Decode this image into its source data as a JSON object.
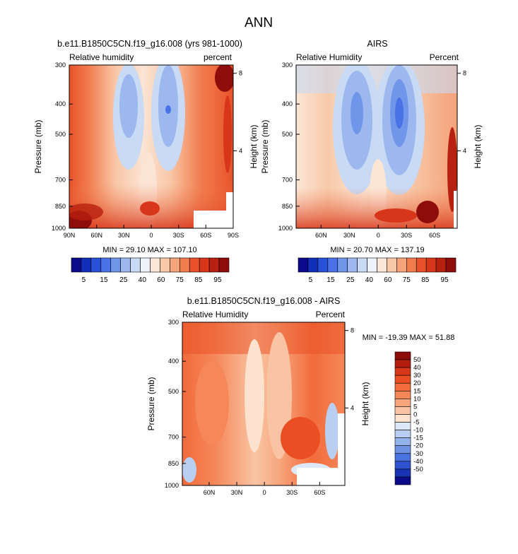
{
  "chart_data": {
    "type": "heatmap",
    "title": "ANN",
    "panels": [
      {
        "id": "model",
        "title": "b.e11.B1850C5CN.f19_g16.008 (yrs 981-1000)",
        "left_label": "Relative humidity",
        "right_label": "percent",
        "ylabel": "Pressure (mb)",
        "ylabel_right": "Height (km)",
        "y_ticks": [
          "300",
          "400",
          "500",
          "700",
          "850",
          "1000"
        ],
        "x_ticks": [
          "90N",
          "60N",
          "30N",
          "0",
          "30S",
          "60S",
          "90S"
        ],
        "height_ticks": [
          "8",
          "4"
        ],
        "min": 29.1,
        "max": 107.1,
        "stats_text": "MIN = 29.10   MAX = 107.10",
        "levels": [
          5,
          15,
          25,
          40,
          60,
          75,
          85,
          95
        ]
      },
      {
        "id": "obs",
        "title": "AIRS",
        "left_label": "Relative Humidity",
        "right_label": "Percent",
        "ylabel": "Pressure (mb)",
        "ylabel_right": "Height (km)",
        "y_ticks": [
          "300",
          "400",
          "500",
          "700",
          "850",
          "1000"
        ],
        "x_ticks": [
          "60N",
          "30N",
          "0",
          "30S",
          "60S"
        ],
        "height_ticks": [
          "8",
          "4"
        ],
        "min": 20.7,
        "max": 137.19,
        "stats_text": "MIN = 20.70   MAX = 137.19",
        "levels": [
          5,
          15,
          25,
          40,
          60,
          75,
          85,
          95
        ]
      },
      {
        "id": "diff",
        "title": "b.e11.B1850C5CN.f19_g16.008 - AIRS",
        "left_label": "Relative Humidity",
        "right_label": "Percent",
        "ylabel": "Pressure (mb)",
        "ylabel_right": "Height (km)",
        "y_ticks": [
          "300",
          "400",
          "500",
          "700",
          "850",
          "1000"
        ],
        "x_ticks": [
          "60N",
          "30N",
          "0",
          "30S",
          "60S"
        ],
        "height_ticks": [
          "8",
          "4"
        ],
        "min": -19.39,
        "max": 51.88,
        "stats_text": "MIN = -19.39   MAX =  51.88",
        "levels": [
          50,
          40,
          30,
          20,
          15,
          10,
          5,
          0,
          -5,
          -10,
          -15,
          -20,
          -30,
          -40,
          -50
        ]
      }
    ],
    "colorbar_rh": {
      "labels": [
        "5",
        "15",
        "25",
        "40",
        "60",
        "75",
        "85",
        "95"
      ],
      "colors": [
        "#0a0a8a",
        "#1030b8",
        "#2850d8",
        "#4a72e6",
        "#7096ea",
        "#9cb8ee",
        "#c8daf4",
        "#eef3fb",
        "#fbe7d8",
        "#f8c8a8",
        "#f5a47c",
        "#f17d4f",
        "#e8522a",
        "#d7361a",
        "#b8200f",
        "#8e0c0a"
      ]
    },
    "colorbar_diff": {
      "labels": [
        "50",
        "40",
        "30",
        "20",
        "15",
        "10",
        "5",
        "0",
        "-5",
        "-10",
        "-15",
        "-20",
        "-30",
        "-40",
        "-50"
      ],
      "colors": [
        "#8e0c0a",
        "#b51d0e",
        "#d7361a",
        "#ea4f24",
        "#f26b3b",
        "#f58759",
        "#f7a57c",
        "#f9c4a3",
        "#fce2cf",
        "#dde9f8",
        "#b9cff2",
        "#94b2ec",
        "#6e93e6",
        "#4a73e0",
        "#2e52d0",
        "#1834b4",
        "#0a0a8a"
      ]
    }
  }
}
